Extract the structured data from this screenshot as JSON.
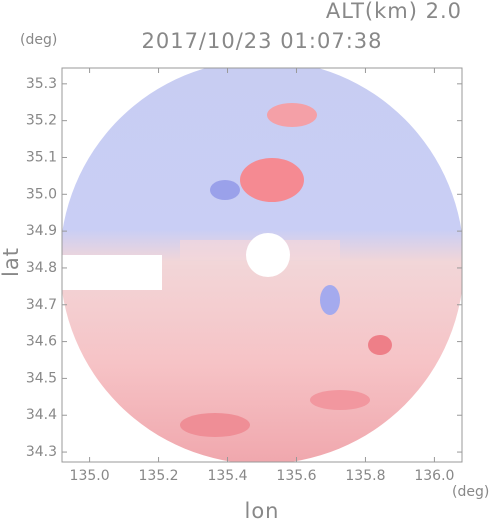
{
  "chart_data": {
    "type": "image",
    "title": "2017/10/23 01:07:38",
    "annotation": "ALT(km) 2.0",
    "x_label": "lon",
    "x_unit": "(deg)",
    "y_label": "lat",
    "y_unit": "(deg)",
    "xlim": [
      134.92,
      136.08
    ],
    "xticks": [
      {
        "value": 135,
        "label": "135.0"
      },
      135.2,
      135.4,
      135.6,
      135.8,
      {
        "value": 136,
        "label": "136.0"
      }
    ],
    "ylim": [
      34.273,
      35.343
    ],
    "yticks": [
      34.3,
      34.4,
      34.5,
      34.6,
      34.7,
      34.8,
      34.9,
      {
        "value": 35,
        "label": "35.0"
      },
      35.1,
      35.2,
      35.3
    ]
  }
}
